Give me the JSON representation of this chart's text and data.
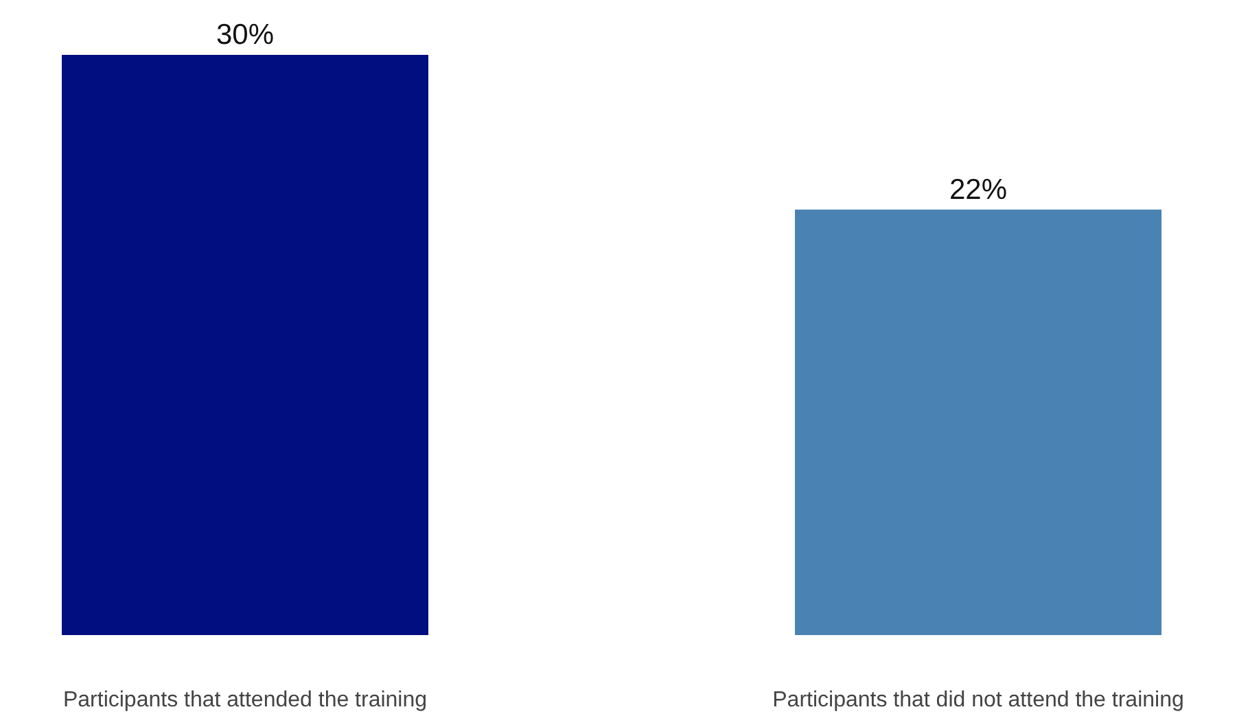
{
  "chart_data": {
    "type": "bar",
    "categories": [
      "Participants that attended the training",
      "Participants that did not attend the training"
    ],
    "values": [
      30,
      22
    ],
    "colors": [
      "#000e80",
      "#4a82b4"
    ],
    "value_labels": [
      "30%",
      "22%"
    ]
  }
}
